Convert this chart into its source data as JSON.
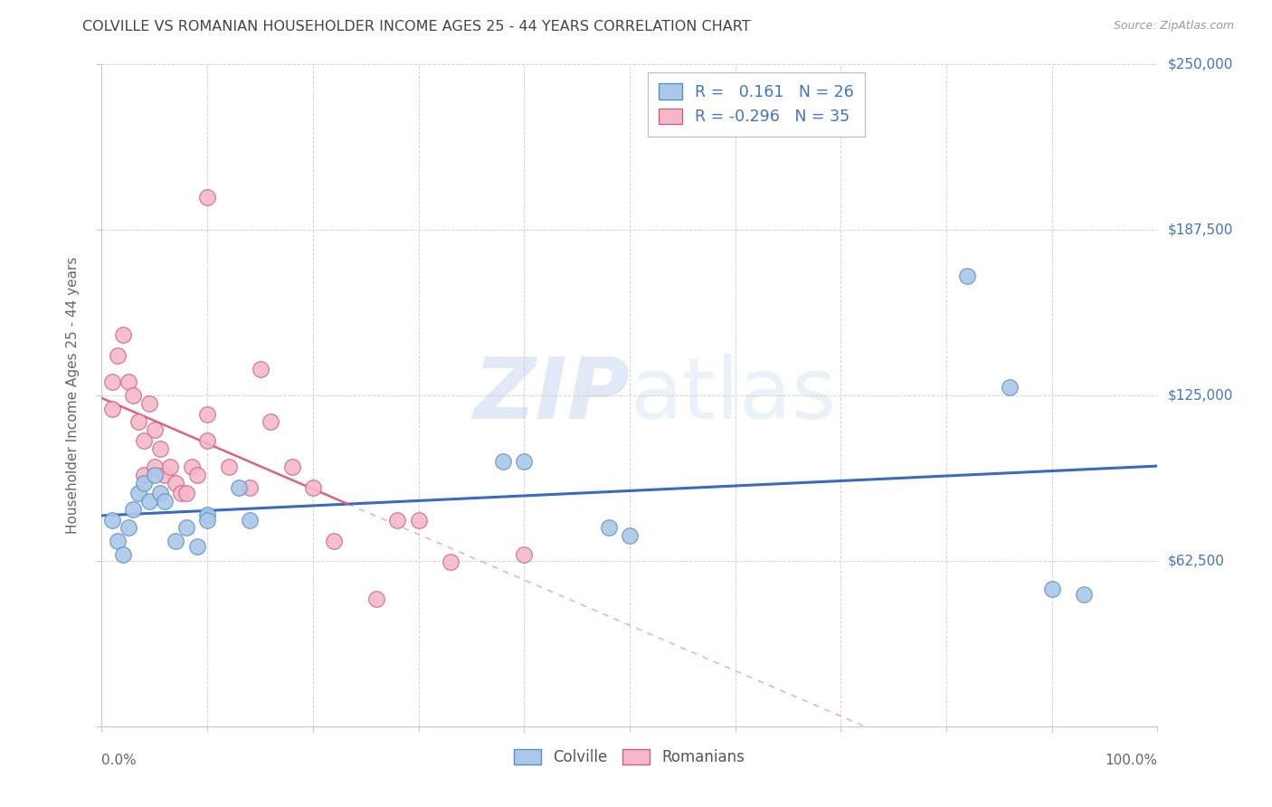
{
  "title": "COLVILLE VS ROMANIAN HOUSEHOLDER INCOME AGES 25 - 44 YEARS CORRELATION CHART",
  "source": "Source: ZipAtlas.com",
  "ylabel": "Householder Income Ages 25 - 44 years",
  "watermark_zip": "ZIP",
  "watermark_atlas": "atlas",
  "colville_R": 0.161,
  "colville_N": 26,
  "romanian_R": -0.296,
  "romanian_N": 35,
  "ylim": [
    0,
    250000
  ],
  "xlim": [
    0.0,
    1.0
  ],
  "yticks": [
    0,
    62500,
    125000,
    187500,
    250000
  ],
  "ytick_labels": [
    "",
    "$62,500",
    "$125,000",
    "$187,500",
    "$250,000"
  ],
  "colville_color": "#aac8e8",
  "colville_edge_color": "#5b8ec4",
  "romanian_color": "#f5b8c8",
  "romanian_edge_color": "#d06080",
  "colville_line_color": "#3a6abf",
  "romanian_solid_color": "#e06080",
  "romanian_dash_color": "#e8a0b0",
  "grid_color": "#c8c8c8",
  "background_color": "#ffffff",
  "title_color": "#444444",
  "right_label_color": "#4472c4",
  "legend_text_color": "#4472c4",
  "legend_R_color": "#333333",
  "colville_x": [
    0.01,
    0.015,
    0.02,
    0.025,
    0.03,
    0.035,
    0.04,
    0.045,
    0.05,
    0.055,
    0.06,
    0.07,
    0.08,
    0.09,
    0.1,
    0.1,
    0.13,
    0.14,
    0.38,
    0.4,
    0.48,
    0.5,
    0.82,
    0.86,
    0.9,
    0.93
  ],
  "colville_y": [
    78000,
    70000,
    65000,
    75000,
    82000,
    88000,
    92000,
    85000,
    95000,
    88000,
    85000,
    70000,
    75000,
    68000,
    80000,
    78000,
    90000,
    78000,
    100000,
    100000,
    75000,
    72000,
    170000,
    128000,
    52000,
    50000
  ],
  "romanian_x": [
    0.01,
    0.01,
    0.015,
    0.02,
    0.025,
    0.03,
    0.035,
    0.04,
    0.04,
    0.045,
    0.05,
    0.05,
    0.055,
    0.06,
    0.065,
    0.07,
    0.075,
    0.08,
    0.085,
    0.09,
    0.1,
    0.1,
    0.1,
    0.12,
    0.14,
    0.15,
    0.16,
    0.18,
    0.2,
    0.22,
    0.26,
    0.28,
    0.3,
    0.33,
    0.4
  ],
  "romanian_y": [
    130000,
    120000,
    140000,
    148000,
    130000,
    125000,
    115000,
    108000,
    95000,
    122000,
    112000,
    98000,
    105000,
    95000,
    98000,
    92000,
    88000,
    88000,
    98000,
    95000,
    118000,
    108000,
    200000,
    98000,
    90000,
    135000,
    115000,
    98000,
    90000,
    70000,
    48000,
    78000,
    78000,
    62000,
    65000
  ]
}
